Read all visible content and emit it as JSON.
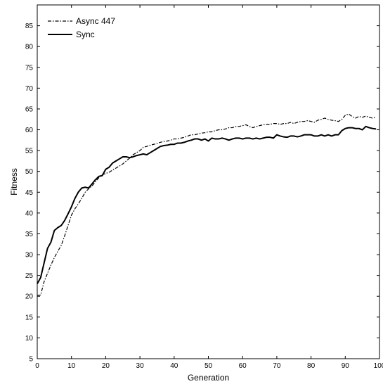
{
  "chart_data": {
    "type": "line",
    "title": "",
    "xlabel": "Generation",
    "ylabel": "Fitness",
    "xlim": [
      0,
      100
    ],
    "ylim": [
      5,
      90
    ],
    "xticks": [
      0,
      10,
      20,
      30,
      40,
      50,
      60,
      70,
      80,
      90,
      100
    ],
    "yticks": [
      5,
      10,
      15,
      20,
      25,
      30,
      35,
      40,
      45,
      50,
      55,
      60,
      65,
      70,
      75,
      80,
      85
    ],
    "grid": false,
    "legend_position": "top-left",
    "series": [
      {
        "name": "Async 447",
        "style": "dash-dot",
        "color": "#000000",
        "x": [
          0,
          1,
          2,
          3,
          4,
          5,
          6,
          7,
          8,
          9,
          10,
          11,
          12,
          13,
          14,
          15,
          16,
          17,
          18,
          19,
          20,
          21,
          22,
          23,
          24,
          25,
          26,
          27,
          28,
          29,
          30,
          31,
          32,
          33,
          34,
          35,
          36,
          37,
          38,
          39,
          40,
          41,
          42,
          43,
          44,
          45,
          46,
          47,
          48,
          49,
          50,
          51,
          52,
          53,
          54,
          55,
          56,
          57,
          58,
          59,
          60,
          61,
          62,
          63,
          64,
          65,
          66,
          67,
          68,
          69,
          70,
          71,
          72,
          73,
          74,
          75,
          76,
          77,
          78,
          79,
          80,
          81,
          82,
          83,
          84,
          85,
          86,
          87,
          88,
          89,
          90,
          91,
          92,
          93,
          94,
          95,
          96,
          97,
          98,
          99
        ],
        "values": [
          20.2,
          20.3,
          23.5,
          25.5,
          27.5,
          29.3,
          30.8,
          32.2,
          34.5,
          37.0,
          39.5,
          41.0,
          42.2,
          43.5,
          45.0,
          45.8,
          46.5,
          47.5,
          48.5,
          49.2,
          49.5,
          49.8,
          50.3,
          50.8,
          51.3,
          51.8,
          52.5,
          53.2,
          54.0,
          54.5,
          55.0,
          55.8,
          56.0,
          56.3,
          56.5,
          56.7,
          57.0,
          57.2,
          57.3,
          57.5,
          57.8,
          57.8,
          58.0,
          58.2,
          58.5,
          58.8,
          58.8,
          59.0,
          59.2,
          59.3,
          59.5,
          59.5,
          59.8,
          60.0,
          60.0,
          60.2,
          60.5,
          60.5,
          60.8,
          60.8,
          61.0,
          61.2,
          60.8,
          60.5,
          60.8,
          61.0,
          61.2,
          61.3,
          61.3,
          61.5,
          61.5,
          61.3,
          61.5,
          61.5,
          61.8,
          61.5,
          61.8,
          62.0,
          62.0,
          62.2,
          62.0,
          61.8,
          62.3,
          62.5,
          62.8,
          62.5,
          62.3,
          62.2,
          62.0,
          62.5,
          63.5,
          63.8,
          63.2,
          62.8,
          63.2,
          63.0,
          63.3,
          63.0,
          62.8,
          63.0
        ]
      },
      {
        "name": "Sync",
        "style": "solid",
        "color": "#000000",
        "x": [
          0,
          1,
          2,
          3,
          4,
          5,
          6,
          7,
          8,
          9,
          10,
          11,
          12,
          13,
          14,
          15,
          16,
          17,
          18,
          19,
          20,
          21,
          22,
          23,
          24,
          25,
          26,
          27,
          28,
          29,
          30,
          31,
          32,
          33,
          34,
          35,
          36,
          37,
          38,
          39,
          40,
          41,
          42,
          43,
          44,
          45,
          46,
          47,
          48,
          49,
          50,
          51,
          52,
          53,
          54,
          55,
          56,
          57,
          58,
          59,
          60,
          61,
          62,
          63,
          64,
          65,
          66,
          67,
          68,
          69,
          70,
          71,
          72,
          73,
          74,
          75,
          76,
          77,
          78,
          79,
          80,
          81,
          82,
          83,
          84,
          85,
          86,
          87,
          88,
          89,
          90,
          91,
          92,
          93,
          94,
          95,
          96,
          97,
          98,
          99
        ],
        "values": [
          23.0,
          24.5,
          28.0,
          31.5,
          33.0,
          35.8,
          36.5,
          37.0,
          38.2,
          39.8,
          41.5,
          43.5,
          45.0,
          46.0,
          46.2,
          46.0,
          47.0,
          48.0,
          48.8,
          49.0,
          50.5,
          51.0,
          52.0,
          52.5,
          53.0,
          53.5,
          53.5,
          53.3,
          53.5,
          53.8,
          54.0,
          54.2,
          54.0,
          54.5,
          55.0,
          55.5,
          56.0,
          56.2,
          56.3,
          56.5,
          56.5,
          56.8,
          56.8,
          57.0,
          57.3,
          57.5,
          57.8,
          57.8,
          57.5,
          57.8,
          57.3,
          58.0,
          57.8,
          57.8,
          58.0,
          57.8,
          57.5,
          57.8,
          58.0,
          58.0,
          57.8,
          58.0,
          58.0,
          57.8,
          58.0,
          57.8,
          58.0,
          58.2,
          58.2,
          58.0,
          58.8,
          58.5,
          58.3,
          58.2,
          58.5,
          58.5,
          58.3,
          58.5,
          58.8,
          58.8,
          58.8,
          58.5,
          58.5,
          58.8,
          58.5,
          58.8,
          58.5,
          58.8,
          58.8,
          59.8,
          60.3,
          60.5,
          60.5,
          60.3,
          60.3,
          60.0,
          60.8,
          60.5,
          60.3,
          60.2
        ]
      }
    ]
  }
}
